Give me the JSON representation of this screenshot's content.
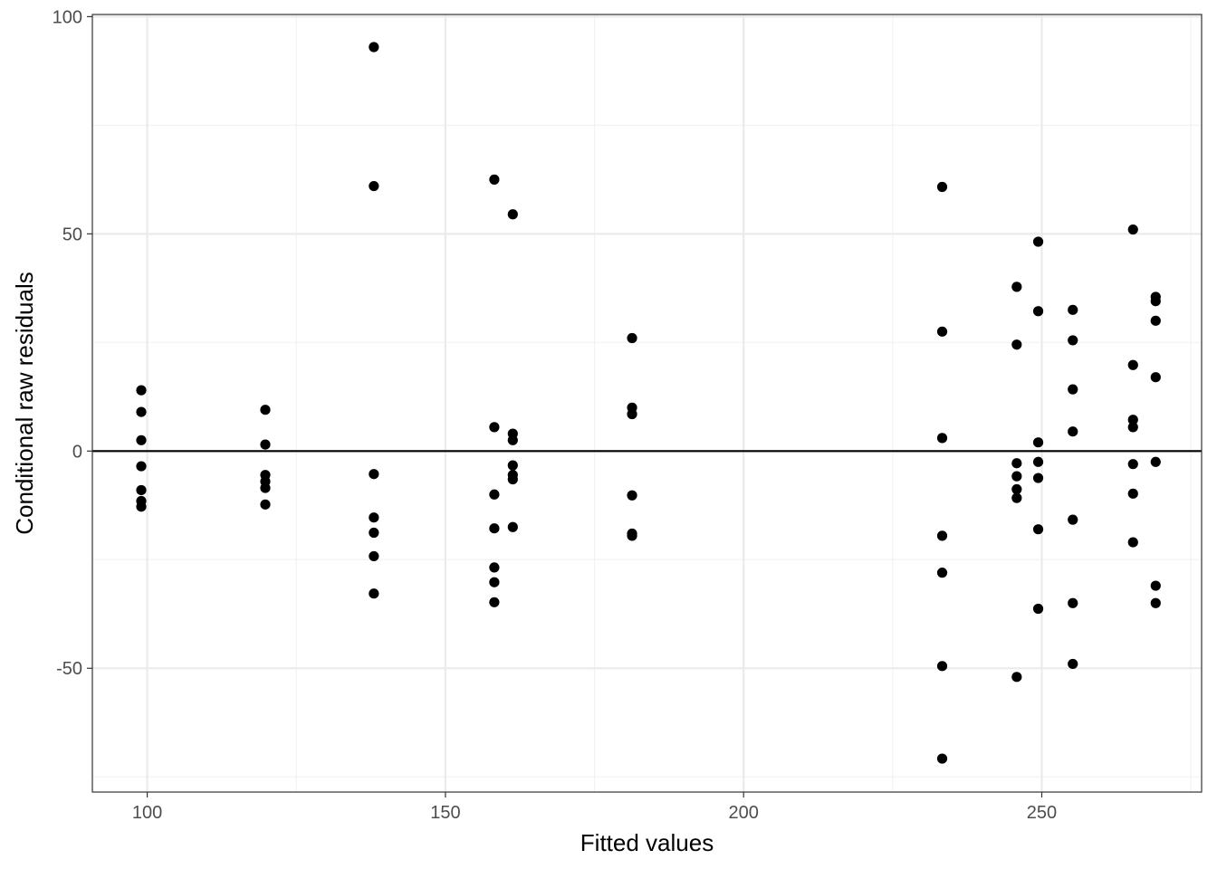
{
  "chart_data": {
    "type": "scatter",
    "title": "",
    "xlabel": "Fitted values",
    "ylabel": "Conditional raw residuals",
    "xlim": [
      90.8,
      276.8
    ],
    "ylim": [
      -78.5,
      100.5
    ],
    "x_ticks": [
      100,
      150,
      200,
      250
    ],
    "x_minor": [
      125,
      175,
      225,
      275
    ],
    "y_ticks": [
      -50,
      0,
      50,
      100
    ],
    "y_minor": [
      -75,
      -25,
      25,
      75
    ],
    "hline": 0,
    "grid": true,
    "legend": "none",
    "colors": {
      "points": "#000000",
      "grid_major": "#ebebeb",
      "grid_minor": "#f2f2f2",
      "panel_border": "#333333",
      "zero_line": "#000000"
    },
    "points": [
      {
        "x": 99,
        "y": 14
      },
      {
        "x": 99,
        "y": 9
      },
      {
        "x": 99,
        "y": 2.5
      },
      {
        "x": 99,
        "y": -3.5
      },
      {
        "x": 99,
        "y": -9
      },
      {
        "x": 99,
        "y": -11.5
      },
      {
        "x": 99,
        "y": -12.8
      },
      {
        "x": 119.8,
        "y": 9.5
      },
      {
        "x": 119.8,
        "y": 1.5
      },
      {
        "x": 119.8,
        "y": -5.5
      },
      {
        "x": 119.8,
        "y": -7
      },
      {
        "x": 119.8,
        "y": -8.5
      },
      {
        "x": 119.8,
        "y": -12.3
      },
      {
        "x": 138,
        "y": 93
      },
      {
        "x": 138,
        "y": 61
      },
      {
        "x": 138,
        "y": -5.3
      },
      {
        "x": 138,
        "y": -15.3
      },
      {
        "x": 138,
        "y": -18.8
      },
      {
        "x": 138,
        "y": -24.2
      },
      {
        "x": 138,
        "y": -32.8
      },
      {
        "x": 158.2,
        "y": 62.5
      },
      {
        "x": 158.2,
        "y": 5.5
      },
      {
        "x": 158.2,
        "y": -10
      },
      {
        "x": 158.2,
        "y": -17.8
      },
      {
        "x": 158.2,
        "y": -26.8
      },
      {
        "x": 158.2,
        "y": -30.2
      },
      {
        "x": 158.2,
        "y": -34.8
      },
      {
        "x": 161.3,
        "y": 54.5
      },
      {
        "x": 161.3,
        "y": 4
      },
      {
        "x": 161.3,
        "y": 2.5
      },
      {
        "x": 161.3,
        "y": -3.3
      },
      {
        "x": 161.3,
        "y": -5.5
      },
      {
        "x": 161.3,
        "y": -6.5
      },
      {
        "x": 161.3,
        "y": -17.5
      },
      {
        "x": 181.3,
        "y": 26
      },
      {
        "x": 181.3,
        "y": 10
      },
      {
        "x": 181.3,
        "y": 8.5
      },
      {
        "x": 181.3,
        "y": -10.2
      },
      {
        "x": 181.3,
        "y": -19
      },
      {
        "x": 181.3,
        "y": -19.5
      },
      {
        "x": 233.3,
        "y": 60.8
      },
      {
        "x": 233.3,
        "y": 27.5
      },
      {
        "x": 233.3,
        "y": 3
      },
      {
        "x": 233.3,
        "y": -19.5
      },
      {
        "x": 233.3,
        "y": -28
      },
      {
        "x": 233.3,
        "y": -49.5
      },
      {
        "x": 233.3,
        "y": -70.8
      },
      {
        "x": 245.8,
        "y": 37.8
      },
      {
        "x": 245.8,
        "y": 24.5
      },
      {
        "x": 245.8,
        "y": -2.8
      },
      {
        "x": 245.8,
        "y": -5.8
      },
      {
        "x": 245.8,
        "y": -8.8
      },
      {
        "x": 245.8,
        "y": -10.8
      },
      {
        "x": 245.8,
        "y": -52
      },
      {
        "x": 249.4,
        "y": 48.2
      },
      {
        "x": 249.4,
        "y": 32.2
      },
      {
        "x": 249.4,
        "y": 2
      },
      {
        "x": 249.4,
        "y": -2.5
      },
      {
        "x": 249.4,
        "y": -6.2
      },
      {
        "x": 249.4,
        "y": -18
      },
      {
        "x": 249.4,
        "y": -36.3
      },
      {
        "x": 255.2,
        "y": 32.5
      },
      {
        "x": 255.2,
        "y": 25.5
      },
      {
        "x": 255.2,
        "y": 14.2
      },
      {
        "x": 255.2,
        "y": 4.5
      },
      {
        "x": 255.2,
        "y": -15.8
      },
      {
        "x": 255.2,
        "y": -35
      },
      {
        "x": 255.2,
        "y": -49
      },
      {
        "x": 265.3,
        "y": 51
      },
      {
        "x": 265.3,
        "y": 19.8
      },
      {
        "x": 265.3,
        "y": 7.2
      },
      {
        "x": 265.3,
        "y": 5.5
      },
      {
        "x": 265.3,
        "y": -3
      },
      {
        "x": 265.3,
        "y": -9.8
      },
      {
        "x": 265.3,
        "y": -21
      },
      {
        "x": 269.1,
        "y": 35.5
      },
      {
        "x": 269.1,
        "y": 34.5
      },
      {
        "x": 269.1,
        "y": 30
      },
      {
        "x": 269.1,
        "y": 17
      },
      {
        "x": 269.1,
        "y": -2.5
      },
      {
        "x": 269.1,
        "y": -31
      },
      {
        "x": 269.1,
        "y": -35
      }
    ]
  }
}
